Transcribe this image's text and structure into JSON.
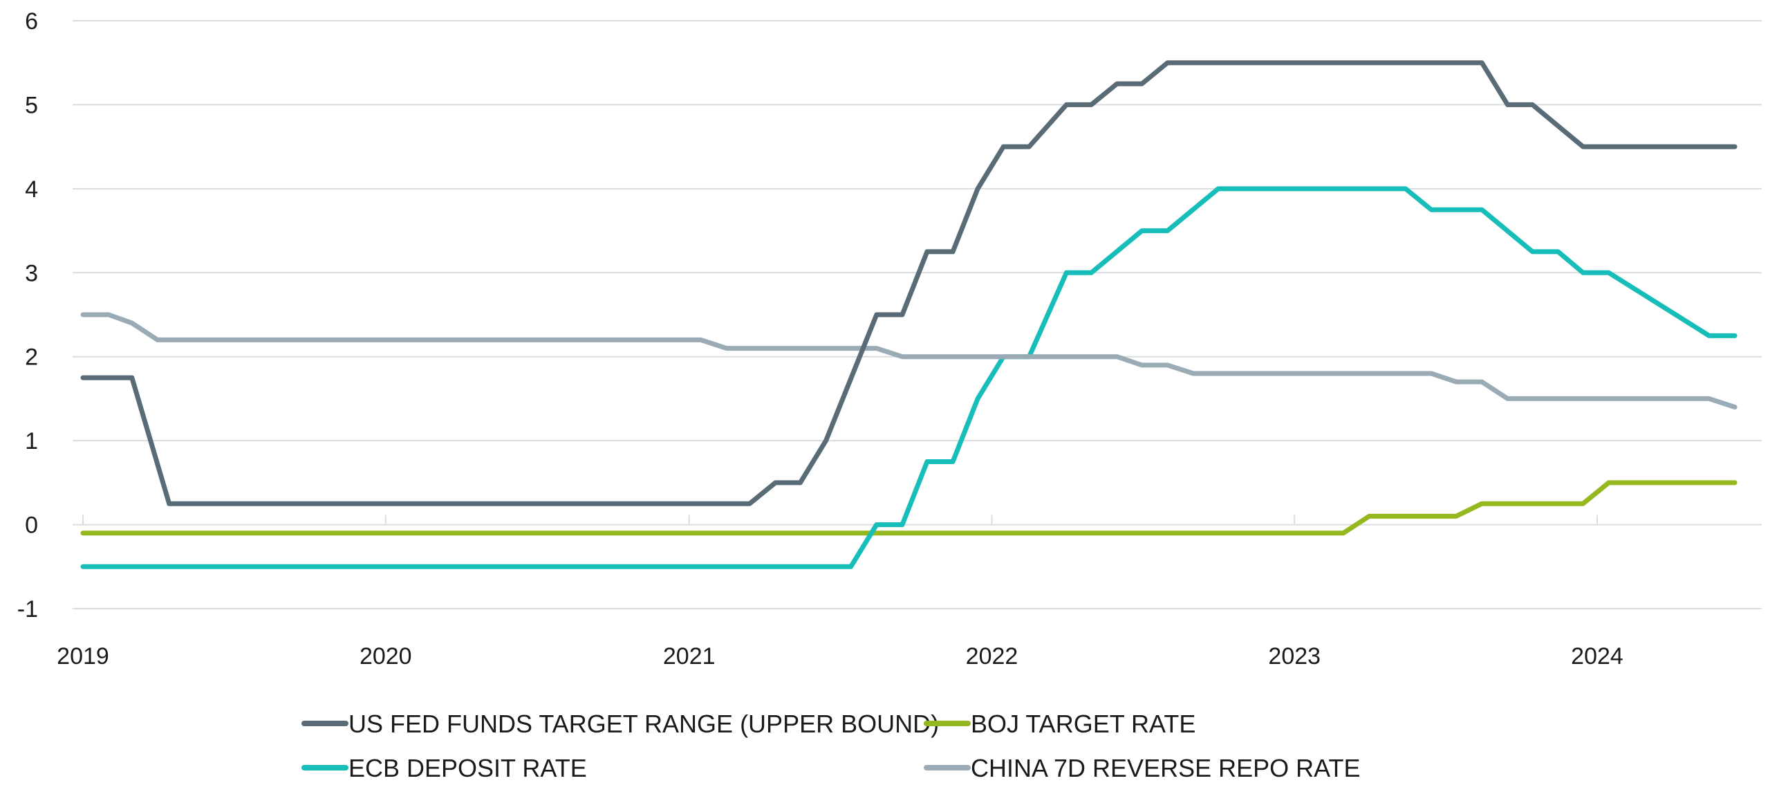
{
  "chart_data": {
    "type": "line",
    "title": "",
    "xlabel": "",
    "ylabel": "",
    "ylim": [
      -1,
      6
    ],
    "xlim": [
      "2019-01-01",
      "2024-07-01"
    ],
    "y_ticks": [
      -1,
      0,
      1,
      2,
      3,
      4,
      5,
      6
    ],
    "x_ticks": [
      {
        "label": "2019",
        "date": "2019-01-01"
      },
      {
        "label": "2020",
        "date": "2020-01-01"
      },
      {
        "label": "2021",
        "date": "2021-01-01"
      },
      {
        "label": "2022",
        "date": "2022-01-01"
      },
      {
        "label": "2023",
        "date": "2023-01-01"
      },
      {
        "label": "2024",
        "date": "2024-01-01"
      }
    ],
    "grid": "horizontal",
    "legend_position": "bottom",
    "series": [
      {
        "name": "US FED FUNDS TARGET RANGE (UPPER BOUND)",
        "color": "#5a6b78",
        "points": [
          [
            "2019-01-01",
            1.75
          ],
          [
            "2019-03-01",
            1.75
          ],
          [
            "2019-04-15",
            0.25
          ],
          [
            "2021-03-15",
            0.25
          ],
          [
            "2021-04-15",
            0.5
          ],
          [
            "2021-05-15",
            0.5
          ],
          [
            "2021-06-15",
            1.0
          ],
          [
            "2021-08-15",
            2.5
          ],
          [
            "2021-09-15",
            2.5
          ],
          [
            "2021-10-15",
            3.25
          ],
          [
            "2021-11-15",
            3.25
          ],
          [
            "2021-12-15",
            4.0
          ],
          [
            "2022-01-15",
            4.5
          ],
          [
            "2022-02-15",
            4.5
          ],
          [
            "2022-04-01",
            5.0
          ],
          [
            "2022-05-01",
            5.0
          ],
          [
            "2022-06-01",
            5.25
          ],
          [
            "2022-07-01",
            5.25
          ],
          [
            "2022-08-01",
            5.5
          ],
          [
            "2023-08-15",
            5.5
          ],
          [
            "2023-09-15",
            5.0
          ],
          [
            "2023-10-15",
            5.0
          ],
          [
            "2023-12-15",
            4.5
          ],
          [
            "2024-06-15",
            4.5
          ]
        ]
      },
      {
        "name": "ECB DEPOSIT RATE",
        "color": "#17bdb8",
        "points": [
          [
            "2019-01-01",
            -0.5
          ],
          [
            "2021-07-15",
            -0.5
          ],
          [
            "2021-08-15",
            0.0
          ],
          [
            "2021-09-15",
            0.0
          ],
          [
            "2021-10-15",
            0.75
          ],
          [
            "2021-11-15",
            0.75
          ],
          [
            "2021-12-15",
            1.5
          ],
          [
            "2022-01-15",
            2.0
          ],
          [
            "2022-02-15",
            2.0
          ],
          [
            "2022-04-01",
            3.0
          ],
          [
            "2022-05-01",
            3.0
          ],
          [
            "2022-07-01",
            3.5
          ],
          [
            "2022-08-01",
            3.5
          ],
          [
            "2022-10-01",
            4.0
          ],
          [
            "2023-05-15",
            4.0
          ],
          [
            "2023-06-15",
            3.75
          ],
          [
            "2023-08-15",
            3.75
          ],
          [
            "2023-10-15",
            3.25
          ],
          [
            "2023-11-15",
            3.25
          ],
          [
            "2023-12-15",
            3.0
          ],
          [
            "2024-01-15",
            3.0
          ],
          [
            "2024-05-15",
            2.25
          ],
          [
            "2024-06-15",
            2.25
          ]
        ]
      },
      {
        "name": "BOJ TARGET RATE",
        "color": "#95b81e",
        "points": [
          [
            "2019-01-01",
            -0.1
          ],
          [
            "2023-03-01",
            -0.1
          ],
          [
            "2023-04-01",
            0.1
          ],
          [
            "2023-07-15",
            0.1
          ],
          [
            "2023-08-15",
            0.25
          ],
          [
            "2023-12-15",
            0.25
          ],
          [
            "2024-01-15",
            0.5
          ],
          [
            "2024-06-15",
            0.5
          ]
        ]
      },
      {
        "name": "CHINA 7D REVERSE REPO RATE",
        "color": "#9aabb6",
        "points": [
          [
            "2019-01-01",
            2.5
          ],
          [
            "2019-02-01",
            2.5
          ],
          [
            "2019-03-01",
            2.4
          ],
          [
            "2019-04-01",
            2.2
          ],
          [
            "2021-01-15",
            2.2
          ],
          [
            "2021-02-15",
            2.1
          ],
          [
            "2021-08-15",
            2.1
          ],
          [
            "2021-09-15",
            2.0
          ],
          [
            "2022-06-01",
            2.0
          ],
          [
            "2022-07-01",
            1.9
          ],
          [
            "2022-08-01",
            1.9
          ],
          [
            "2022-09-01",
            1.8
          ],
          [
            "2023-06-15",
            1.8
          ],
          [
            "2023-07-15",
            1.7
          ],
          [
            "2023-08-15",
            1.7
          ],
          [
            "2023-09-15",
            1.5
          ],
          [
            "2024-05-15",
            1.5
          ],
          [
            "2024-06-15",
            1.4
          ]
        ]
      }
    ],
    "legend_layout": [
      [
        "US FED FUNDS TARGET RANGE (UPPER BOUND)",
        "BOJ TARGET RATE"
      ],
      [
        "ECB DEPOSIT RATE",
        "CHINA 7D REVERSE REPO RATE"
      ]
    ]
  }
}
